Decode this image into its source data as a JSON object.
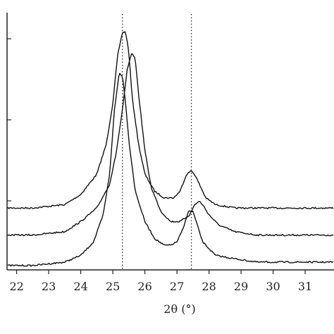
{
  "chart_data": {
    "type": "line",
    "title": "",
    "xlabel": "2θ (°)",
    "ylabel": "",
    "xlim": [
      21.7,
      31.9
    ],
    "x_ticks": [
      "22",
      "23",
      "24",
      "25",
      "26",
      "27",
      "28",
      "29",
      "30",
      "31"
    ],
    "reference_lines_x": [
      25.3,
      27.45
    ],
    "series": [
      {
        "x": [
          21.7,
          22.5,
          23.5,
          24.0,
          24.5,
          24.8,
          25.0,
          25.15,
          25.3,
          25.4,
          25.5,
          25.6,
          25.8,
          26.0,
          26.3,
          26.6,
          26.9,
          27.1,
          27.3,
          27.45,
          27.55,
          27.7,
          27.9,
          28.2,
          28.8,
          29.5,
          30.5,
          31.9
        ],
        "y": [
          0.6,
          0.6,
          0.7,
          1.0,
          1.6,
          2.5,
          3.7,
          5.1,
          5.8,
          5.8,
          5.2,
          3.9,
          2.5,
          1.6,
          1.1,
          0.9,
          0.9,
          1.1,
          1.6,
          1.7,
          1.6,
          1.3,
          0.9,
          0.7,
          0.6,
          0.6,
          0.6,
          0.6
        ]
      },
      {
        "x": [
          21.7,
          22.5,
          23.5,
          24.0,
          24.5,
          24.9,
          25.1,
          25.3,
          25.45,
          25.6,
          25.7,
          25.8,
          26.0,
          26.2,
          26.5,
          26.8,
          27.1,
          27.4,
          27.55,
          27.7,
          27.8,
          28.0,
          28.3,
          28.8,
          29.5,
          30.5,
          31.9
        ],
        "y": [
          -0.2,
          -0.2,
          -0.1,
          0.2,
          0.6,
          1.3,
          2.2,
          3.5,
          4.7,
          5.2,
          5.0,
          4.0,
          2.3,
          1.2,
          0.5,
          0.2,
          0.2,
          0.4,
          0.7,
          0.8,
          0.7,
          0.4,
          0.1,
          -0.1,
          -0.2,
          -0.2,
          -0.2
        ]
      },
      {
        "x": [
          21.7,
          22.5,
          23.5,
          24.0,
          24.4,
          24.7,
          24.9,
          25.05,
          25.2,
          25.3,
          25.4,
          25.5,
          25.7,
          26.0,
          26.3,
          26.6,
          26.8,
          27.0,
          27.2,
          27.35,
          27.5,
          27.6,
          27.8,
          28.2,
          28.8,
          29.5,
          30.5,
          31.9
        ],
        "y": [
          -1.1,
          -1.1,
          -1.0,
          -0.8,
          -0.4,
          0.4,
          1.6,
          3.5,
          4.6,
          4.5,
          3.7,
          2.6,
          1.1,
          0.2,
          -0.3,
          -0.5,
          -0.5,
          -0.4,
          0.0,
          0.5,
          0.5,
          0.2,
          -0.4,
          -0.8,
          -0.9,
          -1.0,
          -1.0,
          -1.0
        ]
      }
    ]
  }
}
